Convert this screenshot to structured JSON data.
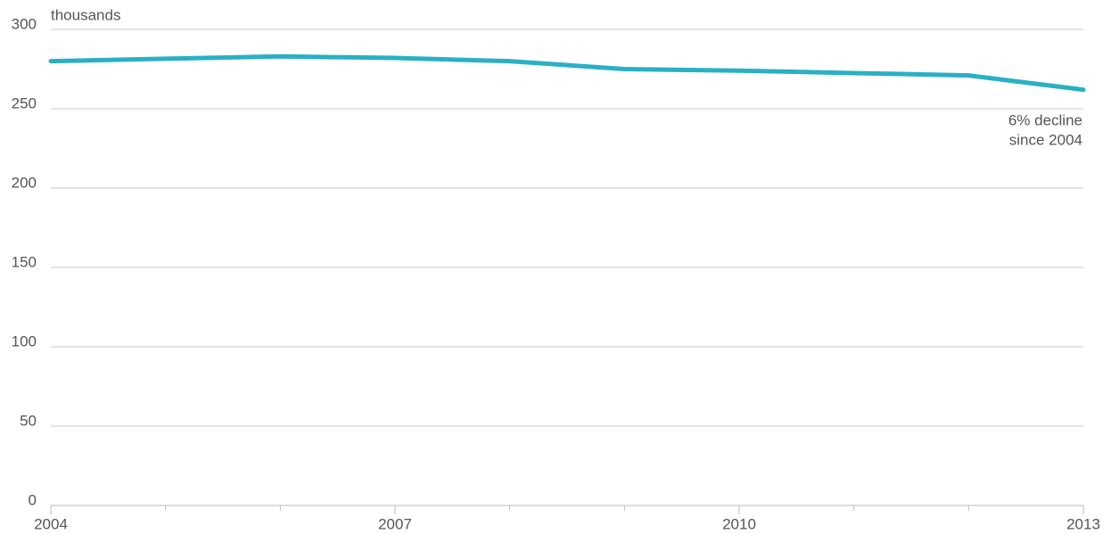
{
  "chart_data": {
    "type": "line",
    "y_label": "thousands",
    "x": [
      2004,
      2005,
      2006,
      2007,
      2008,
      2009,
      2010,
      2011,
      2012,
      2013
    ],
    "series": [
      {
        "name": "",
        "color": "#2ab0c4",
        "values": [
          280,
          281.5,
          283,
          282,
          280,
          275,
          274,
          272.5,
          271,
          262
        ]
      }
    ],
    "xlim": [
      2004,
      2013
    ],
    "xticks": [
      2004,
      2007,
      2010,
      2013
    ],
    "ylim": [
      0,
      300
    ],
    "yticks": [
      0,
      50,
      100,
      150,
      200,
      250,
      300
    ],
    "grid": true,
    "annotation": [
      "6% decline",
      "since 2004"
    ]
  }
}
